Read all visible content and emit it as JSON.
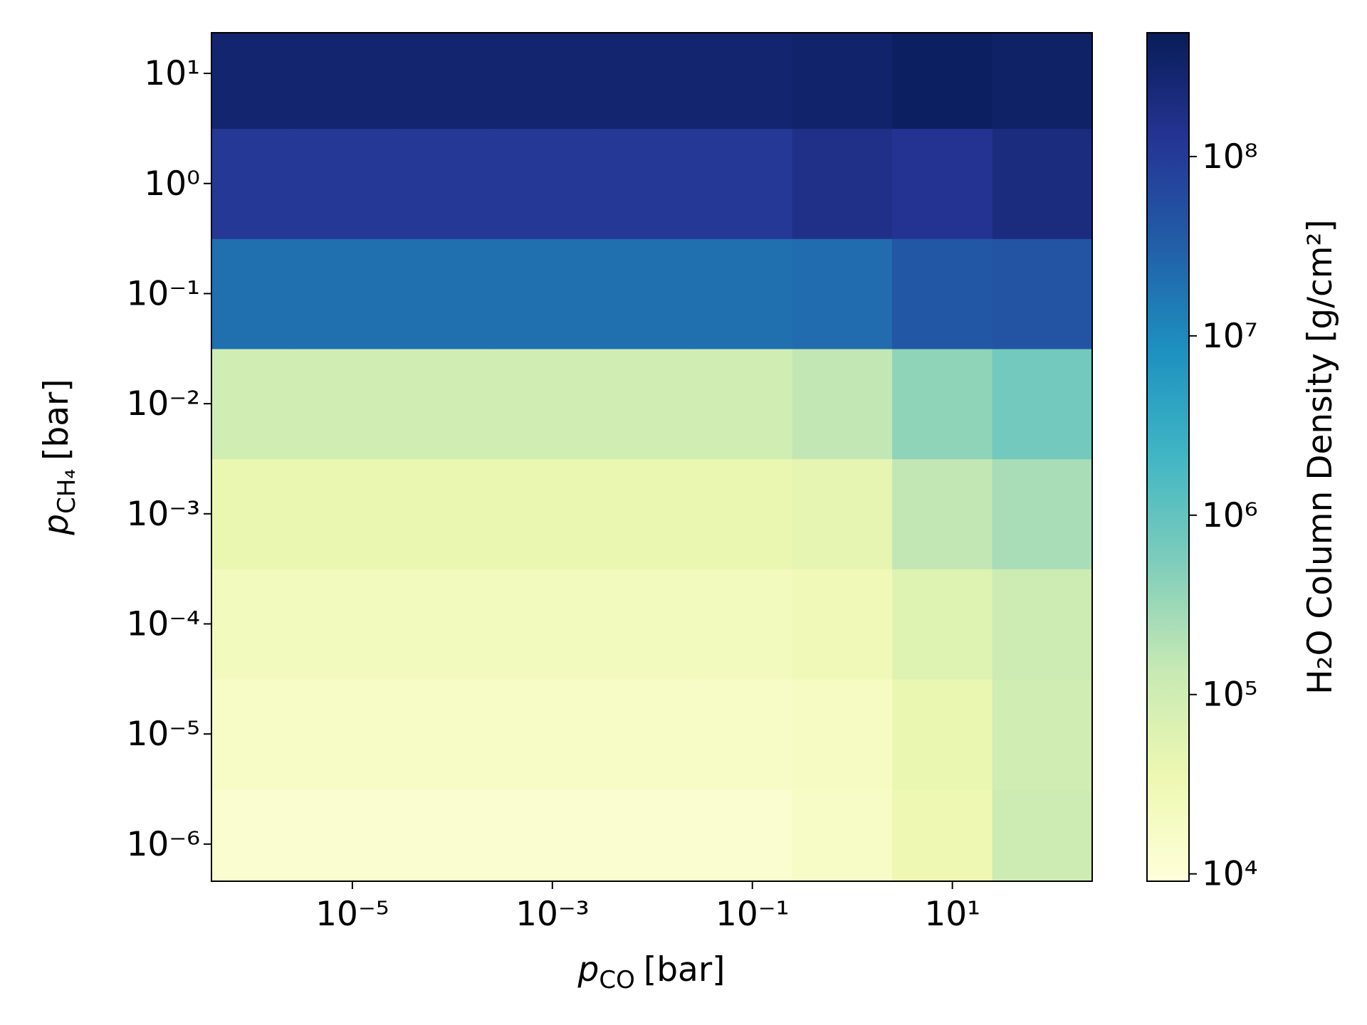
{
  "chart_data": {
    "type": "heatmap",
    "x_label": {
      "symbol": "p",
      "subscript": "CO",
      "unit": "[bar]"
    },
    "y_label": {
      "symbol": "p",
      "subscript": "CH₄",
      "unit": "[bar]"
    },
    "colorbar_label": "H₂O Column Density [g/cm²]",
    "colormap": "YlGnBu",
    "xscale": "log",
    "yscale": "log",
    "cscale": "log",
    "xlim": [
      3.9e-07,
      250
    ],
    "ylim": [
      4.6e-07,
      23.4
    ],
    "clim": [
      9100,
      490000000
    ],
    "xticks": [
      {
        "value": 1e-05,
        "label": "10⁻⁵"
      },
      {
        "value": 0.001,
        "label": "10⁻³"
      },
      {
        "value": 0.1,
        "label": "10⁻¹"
      },
      {
        "value": 10,
        "label": "10¹"
      }
    ],
    "yticks": [
      {
        "value": 1e-06,
        "label": "10⁻⁶"
      },
      {
        "value": 1e-05,
        "label": "10⁻⁵"
      },
      {
        "value": 0.0001,
        "label": "10⁻⁴"
      },
      {
        "value": 0.001,
        "label": "10⁻³"
      },
      {
        "value": 0.01,
        "label": "10⁻²"
      },
      {
        "value": 0.1,
        "label": "10⁻¹"
      },
      {
        "value": 1,
        "label": "10⁰"
      },
      {
        "value": 10,
        "label": "10¹"
      }
    ],
    "cticks": [
      {
        "value": 10000,
        "label": "10⁴"
      },
      {
        "value": 100000,
        "label": "10⁵"
      },
      {
        "value": 1000000,
        "label": "10⁶"
      },
      {
        "value": 10000000,
        "label": "10⁷"
      },
      {
        "value": 100000000,
        "label": "10⁸"
      }
    ],
    "xbins": [
      2.5e-07,
      2.5e-06,
      2.5e-05,
      0.00025,
      0.0025,
      0.025,
      0.25,
      2.5,
      25,
      250
    ],
    "ybins": [
      3.16e-07,
      3.16e-06,
      3.16e-05,
      0.000316,
      0.00316,
      0.0316,
      0.316,
      3.16,
      31.6
    ],
    "z": [
      [
        13000,
        13000,
        13000,
        13000,
        13000,
        13000,
        17000,
        33000,
        110000
      ],
      [
        17000,
        17000,
        17000,
        17000,
        17000,
        17000,
        20000,
        40000,
        100000
      ],
      [
        24000,
        24000,
        24000,
        24000,
        24000,
        24000,
        27000,
        60000,
        110000
      ],
      [
        40000,
        40000,
        40000,
        40000,
        40000,
        40000,
        45000,
        150000,
        250000
      ],
      [
        100000,
        100000,
        100000,
        100000,
        100000,
        100000,
        150000,
        400000,
        700000
      ],
      [
        20000000,
        20000000,
        20000000,
        20000000,
        20000000,
        20000000,
        22000000,
        40000000,
        45000000
      ],
      [
        110000000,
        110000000,
        110000000,
        110000000,
        110000000,
        110000000,
        160000000,
        130000000,
        200000000
      ],
      [
        300000000,
        300000000,
        300000000,
        300000000,
        300000000,
        300000000,
        320000000,
        400000000,
        360000000
      ]
    ]
  }
}
